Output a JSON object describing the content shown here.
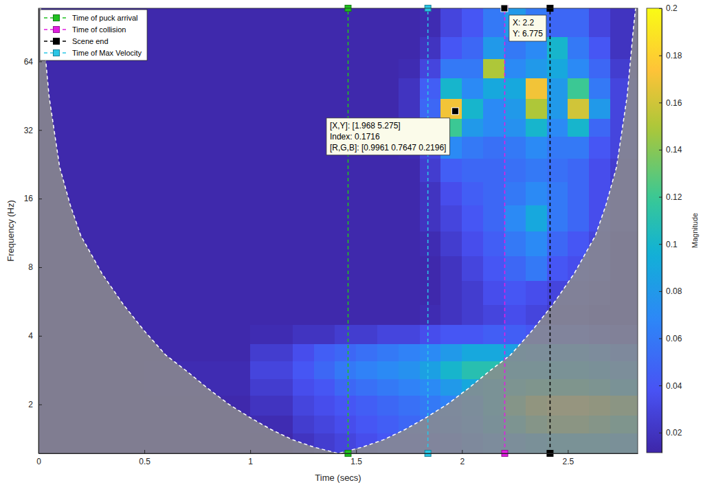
{
  "chart_data": {
    "type": "heatmap",
    "x_label": "Time (secs)",
    "y_label": "Frequency (Hz)",
    "log": "y",
    "xlim": [
      0,
      2.83
    ],
    "xticks": [
      0,
      0.5,
      1,
      1.5,
      2,
      2.5
    ],
    "ylim": [
      1.22,
      109.5
    ],
    "yticks": [
      2,
      4,
      8,
      16,
      32,
      64
    ],
    "legend": "upper left",
    "x_edges": [
      0,
      0.5,
      1,
      1.2,
      1.3,
      1.4,
      1.5,
      1.6,
      1.7,
      1.8,
      1.9,
      2,
      2.1,
      2.2,
      2.3,
      2.4,
      2.5,
      2.6,
      2.7,
      2.83
    ],
    "y_edges": [
      1.22,
      1.5,
      1.8,
      2.2,
      2.6,
      3.1,
      3.7,
      4.5,
      5.5,
      7,
      9,
      11.5,
      15,
      19,
      24,
      30,
      36,
      44,
      54,
      66,
      82,
      109.5
    ],
    "z": [
      [
        0.013,
        0.013,
        0.013,
        0.02,
        0.025,
        0.03,
        0.035,
        0.04,
        0.04,
        0.045,
        0.05,
        0.06,
        0.07,
        0.08,
        0.09,
        0.1,
        0.1,
        0.1,
        0.09
      ],
      [
        0.013,
        0.013,
        0.015,
        0.025,
        0.03,
        0.035,
        0.04,
        0.045,
        0.05,
        0.055,
        0.06,
        0.07,
        0.09,
        0.11,
        0.13,
        0.14,
        0.14,
        0.13,
        0.12
      ],
      [
        0.013,
        0.013,
        0.02,
        0.03,
        0.035,
        0.04,
        0.045,
        0.05,
        0.055,
        0.06,
        0.065,
        0.075,
        0.1,
        0.13,
        0.15,
        0.16,
        0.16,
        0.15,
        0.14
      ],
      [
        0.013,
        0.015,
        0.025,
        0.035,
        0.04,
        0.05,
        0.055,
        0.06,
        0.065,
        0.07,
        0.08,
        0.09,
        0.1,
        0.11,
        0.12,
        0.12,
        0.12,
        0.11,
        0.1
      ],
      [
        0.013,
        0.015,
        0.03,
        0.04,
        0.05,
        0.06,
        0.065,
        0.07,
        0.075,
        0.085,
        0.1,
        0.11,
        0.11,
        0.1,
        0.1,
        0.1,
        0.1,
        0.09,
        0.08
      ],
      [
        0.013,
        0.013,
        0.025,
        0.035,
        0.045,
        0.05,
        0.055,
        0.06,
        0.065,
        0.07,
        0.08,
        0.09,
        0.09,
        0.085,
        0.08,
        0.08,
        0.08,
        0.07,
        0.06
      ],
      [
        0.013,
        0.013,
        0.015,
        0.02,
        0.02,
        0.025,
        0.025,
        0.03,
        0.03,
        0.035,
        0.04,
        0.04,
        0.045,
        0.045,
        0.04,
        0.04,
        0.04,
        0.035,
        0.03
      ],
      [
        0.013,
        0.013,
        0.013,
        0.013,
        0.013,
        0.013,
        0.013,
        0.013,
        0.013,
        0.015,
        0.02,
        0.025,
        0.03,
        0.035,
        0.03,
        0.025,
        0.025,
        0.02,
        0.02
      ],
      [
        0.013,
        0.013,
        0.013,
        0.013,
        0.013,
        0.013,
        0.013,
        0.013,
        0.013,
        0.013,
        0.02,
        0.025,
        0.035,
        0.04,
        0.035,
        0.03,
        0.03,
        0.025,
        0.02
      ],
      [
        0.013,
        0.013,
        0.013,
        0.013,
        0.013,
        0.013,
        0.013,
        0.013,
        0.013,
        0.013,
        0.02,
        0.03,
        0.04,
        0.05,
        0.06,
        0.04,
        0.035,
        0.03,
        0.02
      ],
      [
        0.013,
        0.013,
        0.013,
        0.013,
        0.013,
        0.013,
        0.013,
        0.013,
        0.013,
        0.015,
        0.025,
        0.035,
        0.045,
        0.06,
        0.07,
        0.05,
        0.04,
        0.03,
        0.02
      ],
      [
        0.013,
        0.013,
        0.013,
        0.013,
        0.013,
        0.013,
        0.013,
        0.013,
        0.013,
        0.02,
        0.03,
        0.04,
        0.05,
        0.07,
        0.09,
        0.06,
        0.05,
        0.035,
        0.025
      ],
      [
        0.013,
        0.013,
        0.013,
        0.013,
        0.013,
        0.013,
        0.013,
        0.013,
        0.013,
        0.02,
        0.035,
        0.045,
        0.05,
        0.06,
        0.07,
        0.06,
        0.05,
        0.035,
        0.025
      ],
      [
        0.013,
        0.013,
        0.013,
        0.013,
        0.013,
        0.013,
        0.013,
        0.013,
        0.013,
        0.025,
        0.045,
        0.05,
        0.05,
        0.055,
        0.06,
        0.055,
        0.05,
        0.035,
        0.025
      ],
      [
        0.013,
        0.013,
        0.013,
        0.013,
        0.013,
        0.013,
        0.013,
        0.013,
        0.015,
        0.03,
        0.07,
        0.06,
        0.055,
        0.06,
        0.07,
        0.06,
        0.06,
        0.04,
        0.03
      ],
      [
        0.013,
        0.013,
        0.013,
        0.013,
        0.013,
        0.013,
        0.013,
        0.013,
        0.02,
        0.045,
        0.12,
        0.08,
        0.07,
        0.075,
        0.1,
        0.07,
        0.1,
        0.05,
        0.03
      ],
      [
        0.013,
        0.013,
        0.013,
        0.013,
        0.013,
        0.013,
        0.013,
        0.013,
        0.02,
        0.05,
        0.17,
        0.1,
        0.07,
        0.08,
        0.15,
        0.08,
        0.16,
        0.08,
        0.03
      ],
      [
        0.013,
        0.013,
        0.013,
        0.013,
        0.013,
        0.013,
        0.013,
        0.013,
        0.02,
        0.045,
        0.1,
        0.07,
        0.09,
        0.09,
        0.17,
        0.08,
        0.12,
        0.06,
        0.03
      ],
      [
        0.013,
        0.013,
        0.013,
        0.013,
        0.013,
        0.013,
        0.013,
        0.013,
        0.015,
        0.03,
        0.06,
        0.06,
        0.15,
        0.07,
        0.08,
        0.09,
        0.07,
        0.05,
        0.025
      ],
      [
        0.013,
        0.013,
        0.013,
        0.013,
        0.013,
        0.013,
        0.013,
        0.013,
        0.013,
        0.02,
        0.04,
        0.05,
        0.08,
        0.06,
        0.07,
        0.1,
        0.06,
        0.04,
        0.02
      ],
      [
        0.013,
        0.013,
        0.013,
        0.013,
        0.013,
        0.013,
        0.013,
        0.013,
        0.013,
        0.015,
        0.03,
        0.04,
        0.06,
        0.08,
        0.06,
        0.05,
        0.05,
        0.03,
        0.02
      ]
    ],
    "colorbar": {
      "label": "Magnitude",
      "range": [
        0.0115,
        0.2
      ],
      "ticks": [
        0.02,
        0.04,
        0.06,
        0.08,
        0.1,
        0.12,
        0.14,
        0.16,
        0.18,
        0.2
      ]
    },
    "coi": {
      "x": [
        0.01,
        0.02,
        0.05,
        0.1,
        0.15,
        0.2,
        0.3,
        0.4,
        0.5,
        0.6,
        0.7,
        0.8,
        0.9,
        1.0,
        1.1,
        1.2,
        1.3,
        1.415,
        1.53,
        1.63,
        1.73,
        1.83,
        1.93,
        2.03,
        2.13,
        2.23,
        2.33,
        2.43,
        2.53,
        2.63,
        2.68,
        2.73,
        2.78,
        2.81,
        2.82
      ],
      "y": [
        109.5,
        90,
        45,
        22,
        15,
        11,
        7.5,
        5.5,
        4.2,
        3.3,
        2.8,
        2.35,
        2.0,
        1.75,
        1.55,
        1.4,
        1.3,
        1.22,
        1.3,
        1.4,
        1.55,
        1.75,
        2.0,
        2.35,
        2.8,
        3.3,
        4.2,
        5.5,
        7.5,
        11,
        15,
        22,
        45,
        90,
        109.5
      ]
    },
    "series": [
      {
        "name": "Time of puck arrival",
        "type": "vline",
        "x": 1.462,
        "color": "#20c020",
        "marker": "square",
        "line_style": "dashed"
      },
      {
        "name": "Time of collision",
        "type": "vline",
        "x": 2.202,
        "color": "#e01fe0",
        "marker": "square",
        "line_style": "dashed"
      },
      {
        "name": "Scene end",
        "type": "vline",
        "x": 2.416,
        "color": "#000000",
        "marker": "square",
        "line_style": "dashed"
      },
      {
        "name": "Time of Max Velocity",
        "type": "vline",
        "x": 1.839,
        "color": "#2ac6e6",
        "marker": "square",
        "line_style": "dashed"
      }
    ],
    "annotations": [
      {
        "x": 1.968,
        "y": 38.72,
        "lines": [
          "[X,Y]: [1.968 5.275]",
          "Index: 0.1716",
          "[R,G,B]: [0.9961 0.7647 0.2196]"
        ]
      },
      {
        "x": 2.2,
        "y": 109.5,
        "lines": [
          "X: 2.2",
          "Y: 6.775"
        ]
      }
    ]
  }
}
